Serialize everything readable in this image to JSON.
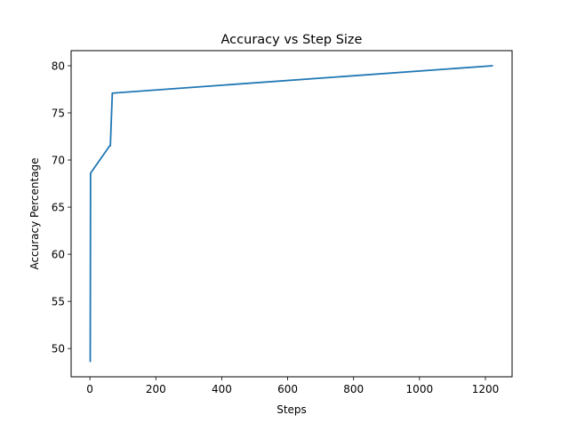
{
  "chart_data": {
    "type": "line",
    "title": "Accuracy vs Step Size",
    "xlabel": "Steps",
    "ylabel": "Accuracy Percentage",
    "xlim": [
      -57,
      1281
    ],
    "ylim": [
      47.0,
      81.6
    ],
    "xticks": [
      0,
      200,
      400,
      600,
      800,
      1000,
      1200
    ],
    "yticks": [
      50,
      55,
      60,
      65,
      70,
      75,
      80
    ],
    "grid": false,
    "series": [
      {
        "color": "#1f77b4",
        "x": [
          1,
          2,
          60,
          62,
          68,
          70,
          1222
        ],
        "y": [
          48.6,
          68.6,
          71.5,
          71.5,
          77.1,
          77.1,
          80.0
        ]
      }
    ]
  }
}
